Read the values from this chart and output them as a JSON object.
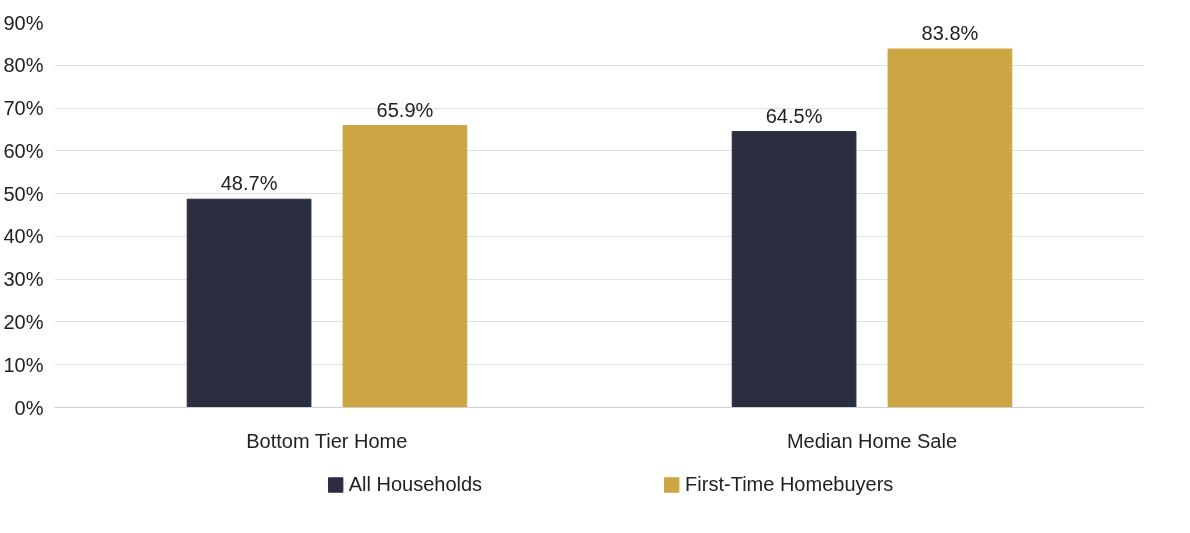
{
  "chart_data": {
    "type": "bar",
    "categories": [
      "Bottom Tier Home",
      "Median Home Sale"
    ],
    "series": [
      {
        "name": "All Households",
        "color": "#2b2e3f",
        "values": [
          48.7,
          64.5
        ],
        "value_labels": [
          "48.7%",
          "64.5%"
        ]
      },
      {
        "name": "First-Time Homebuyers",
        "color": "#cca642",
        "values": [
          65.9,
          83.8
        ],
        "value_labels": [
          "65.9%",
          "83.8%"
        ]
      }
    ],
    "ylim": [
      0,
      90
    ],
    "yticks": [
      {
        "value": 0,
        "label": "0%"
      },
      {
        "value": 10,
        "label": "10%"
      },
      {
        "value": 20,
        "label": "20%"
      },
      {
        "value": 30,
        "label": "30%"
      },
      {
        "value": 40,
        "label": "40%"
      },
      {
        "value": 50,
        "label": "50%"
      },
      {
        "value": 60,
        "label": "60%"
      },
      {
        "value": 70,
        "label": "70%"
      },
      {
        "value": 80,
        "label": "80%"
      },
      {
        "value": 90,
        "label": "90%"
      }
    ],
    "grid": "y",
    "legend": "bottom"
  }
}
